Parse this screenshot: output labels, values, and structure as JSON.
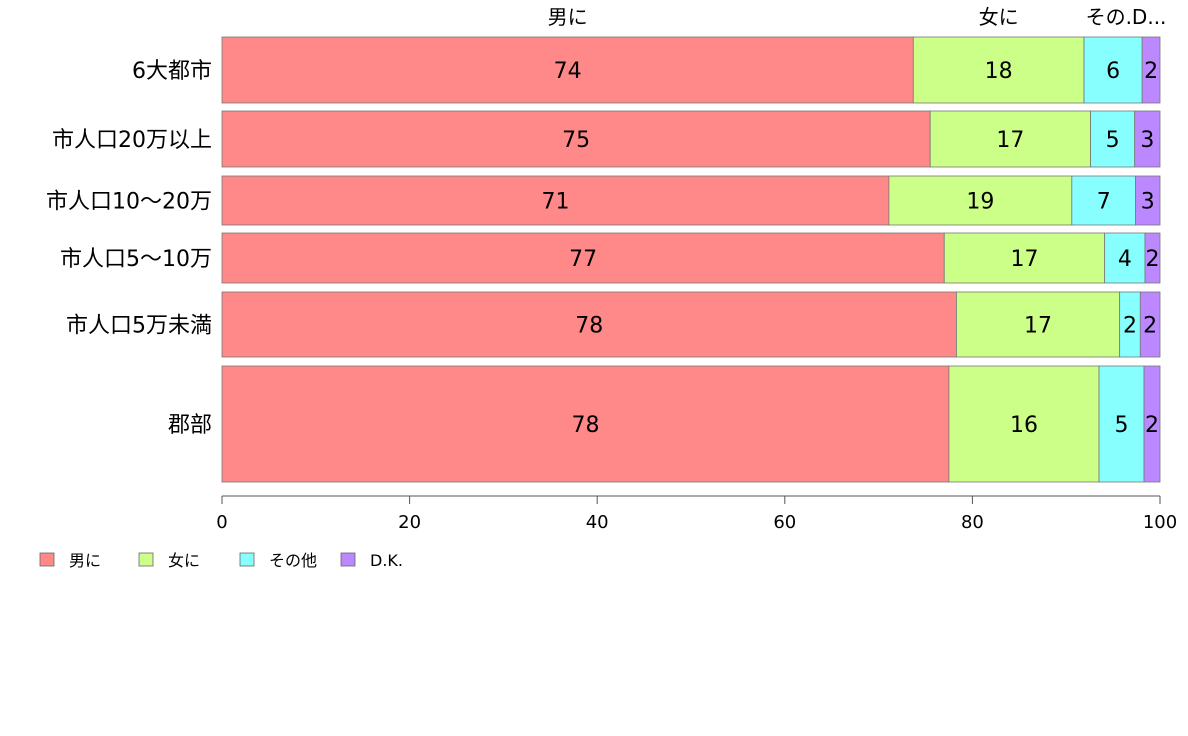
{
  "chart_data": {
    "type": "bar",
    "orientation": "horizontal",
    "stacked": true,
    "title": "",
    "xlabel": "",
    "ylabel": "",
    "xlim": [
      0,
      100
    ],
    "x_ticks": [
      "0",
      "20",
      "40",
      "60",
      "80",
      "100"
    ],
    "categories": [
      "6大都市",
      "市人口20万以上",
      "市人口10〜20万",
      "市人口5〜10万",
      "市人口5万未満",
      "郡部"
    ],
    "series": [
      {
        "name": "男に",
        "color": "#ff8888",
        "values": [
          73.7,
          75.5,
          71.1,
          77.0,
          78.3,
          77.5
        ],
        "labels": [
          "74",
          "75",
          "71",
          "77",
          "78",
          "78"
        ]
      },
      {
        "name": "女に",
        "color": "#ccff88",
        "values": [
          18.2,
          17.1,
          19.5,
          17.1,
          17.4,
          16.0
        ],
        "labels": [
          "18",
          "17",
          "19",
          "17",
          "17",
          "16"
        ]
      },
      {
        "name": "その他",
        "color": "#88ffff",
        "values": [
          6.2,
          4.7,
          6.8,
          4.3,
          2.2,
          4.8
        ],
        "labels": [
          "6",
          "5",
          "7",
          "4",
          "2",
          "5"
        ]
      },
      {
        "name": "D.K.",
        "color": "#bb88ff",
        "values": [
          1.9,
          2.7,
          2.6,
          1.6,
          2.1,
          1.7
        ],
        "labels": [
          "2",
          "3",
          "3",
          "2",
          "2",
          "2"
        ]
      }
    ],
    "top_labels": [
      "男に",
      "女に",
      "その.D..."
    ],
    "legend": {
      "position": "bottom-left",
      "entries": [
        "男に",
        "女に",
        "その他",
        "D.K."
      ]
    },
    "grid": false
  }
}
